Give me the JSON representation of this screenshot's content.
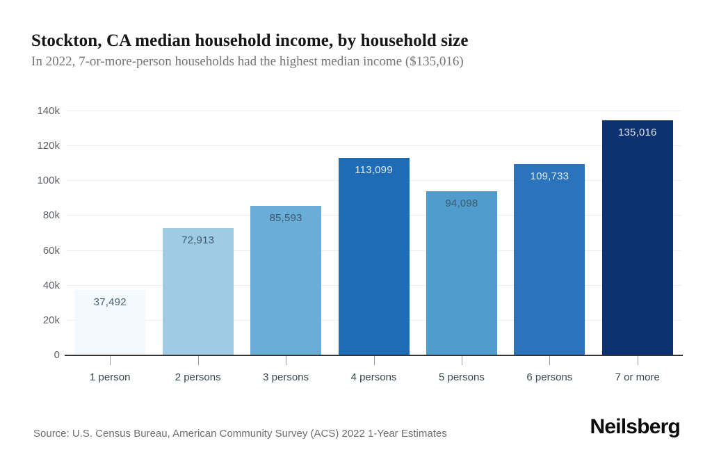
{
  "header": {
    "title": "Stockton, CA median household income, by household size",
    "subtitle": "In 2022, 7-or-more-person households had the highest median income ($135,016)"
  },
  "chart_data": {
    "type": "bar",
    "title": "Stockton, CA median household income, by household size",
    "categories": [
      "1 person",
      "2 persons",
      "3 persons",
      "4 persons",
      "5 persons",
      "6 persons",
      "7 or more"
    ],
    "values": [
      37492,
      72913,
      85593,
      113099,
      94098,
      109733,
      135016
    ],
    "value_labels": [
      "37,492",
      "72,913",
      "85,593",
      "113,099",
      "94,098",
      "109,733",
      "135,016"
    ],
    "bar_colors": [
      "#f3f9fd",
      "#a0cbe4",
      "#6aaed7",
      "#1d6cb5",
      "#509ccd",
      "#2b74bb",
      "#0d3272"
    ],
    "value_label_colors": [
      "#4a6272",
      "#3f5a6b",
      "#3c5570",
      "#dfe9f2",
      "#3c5a70",
      "#dfe9f2",
      "#d8e1ec"
    ],
    "xlabel": "",
    "ylabel": "",
    "ylim": [
      0,
      140000
    ],
    "ytick_values": [
      0,
      20000,
      40000,
      60000,
      80000,
      100000,
      120000,
      140000
    ],
    "ytick_labels": [
      "0",
      "20k",
      "40k",
      "60k",
      "80k",
      "100k",
      "120k",
      "140k"
    ],
    "grid": "horizontal",
    "legend": "none"
  },
  "footer": {
    "source": "Source: U.S. Census Bureau, American Community Survey (ACS) 2022 1-Year Estimates",
    "logo": "Neilsberg"
  },
  "colors": {
    "background": "#ffffff",
    "gridline": "#ececec",
    "axis_line": "#333333",
    "tick": "#999999",
    "title_text": "#161616",
    "subtitle_text": "#767676",
    "axis_label_text": "#5f6368",
    "category_label_text": "#37474f",
    "source_text": "#6e6e6e",
    "logo_text": "#0a0a0a"
  }
}
